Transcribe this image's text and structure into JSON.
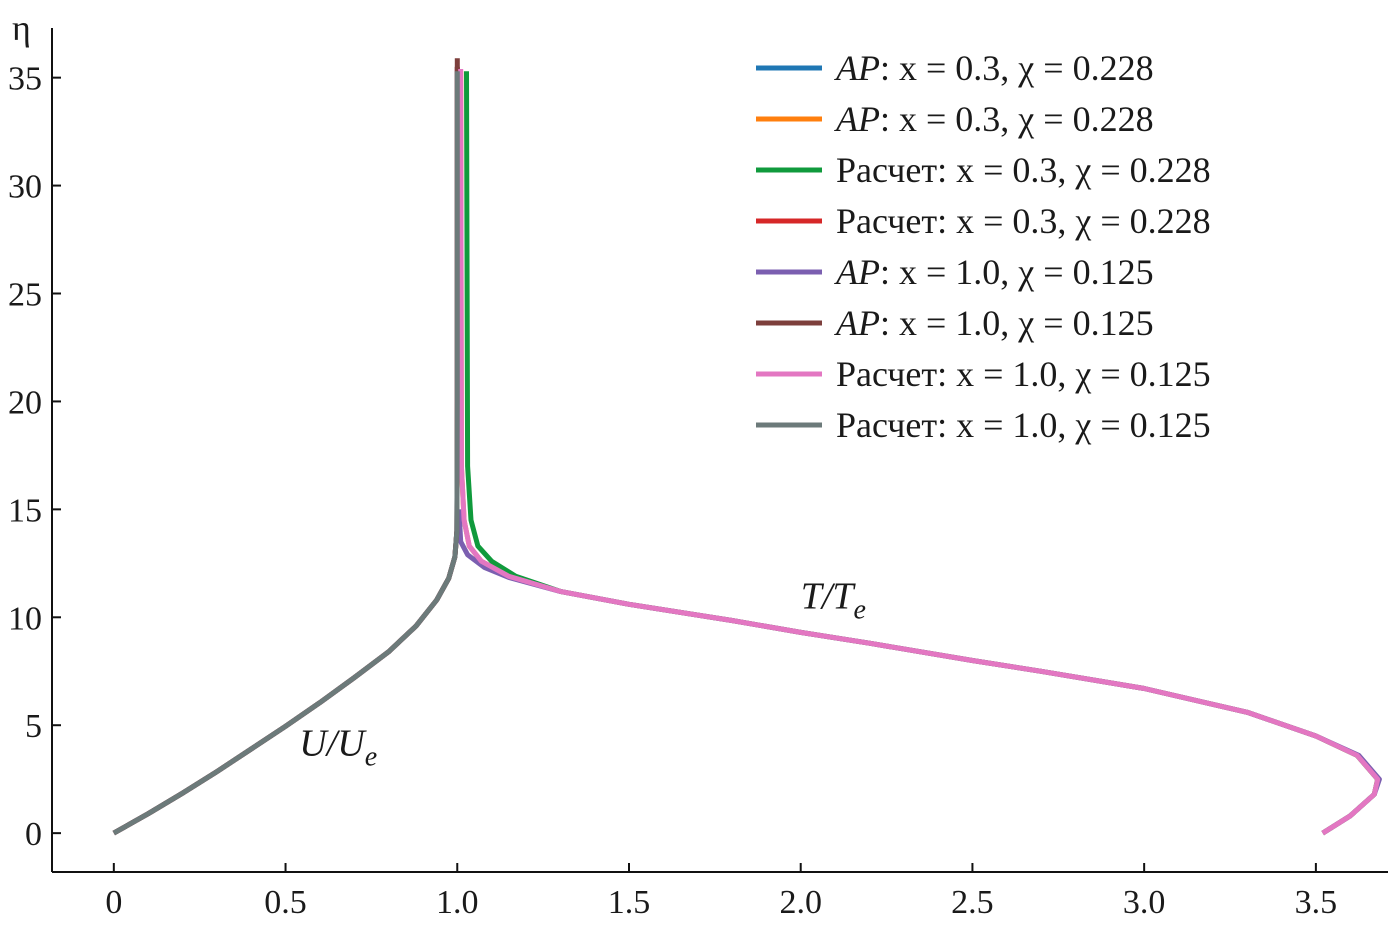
{
  "chart_data": {
    "type": "line",
    "title": "",
    "xlabel": "",
    "ylabel": "η",
    "xlim": [
      -0.18,
      3.71
    ],
    "ylim": [
      -1.8,
      37.3
    ],
    "xticks": [
      0,
      0.5,
      1.0,
      1.5,
      2.0,
      2.5,
      3.0,
      3.5
    ],
    "xtick_labels": [
      "0",
      "0.5",
      "1.0",
      "1.5",
      "2.0",
      "2.5",
      "3.0",
      "3.5"
    ],
    "yticks": [
      0,
      5,
      10,
      15,
      20,
      25,
      30,
      35
    ],
    "ytick_labels": [
      "0",
      "5",
      "10",
      "15",
      "20",
      "25",
      "30",
      "35"
    ],
    "grid": false,
    "legend_position": "top-right",
    "annotations": [
      {
        "text": "U/U",
        "sub": "e",
        "x": 0.54,
        "y": 3.6
      },
      {
        "text": "T/T",
        "sub": "e",
        "x": 2.0,
        "y": 10.4
      }
    ],
    "series": [
      {
        "name": "AP: x = 0.3, χ = 0.228",
        "color": "#1f77b4",
        "x": [
          0,
          0.1,
          0.2,
          0.3,
          0.4,
          0.5,
          0.6,
          0.7,
          0.8,
          0.88,
          0.94,
          0.975,
          0.993,
          0.999,
          1.0,
          1.0
        ],
        "y": [
          0,
          0.9,
          1.85,
          2.85,
          3.9,
          4.95,
          6.05,
          7.2,
          8.4,
          9.6,
          10.8,
          11.8,
          12.8,
          14,
          20,
          35.5
        ]
      },
      {
        "name": "AP: x = 0.3, χ = 0.228",
        "color": "#ff7f0e",
        "x": [
          3.52,
          3.6,
          3.67,
          3.68,
          3.62,
          3.5,
          3.3,
          3.0,
          2.7,
          2.5,
          2.2,
          2.0,
          1.8,
          1.5,
          1.3,
          1.15,
          1.07,
          1.035,
          1.02,
          1.012,
          1.01
        ],
        "y": [
          0,
          0.8,
          1.8,
          2.5,
          3.6,
          4.5,
          5.6,
          6.7,
          7.5,
          8.0,
          8.8,
          9.3,
          9.85,
          10.6,
          11.2,
          11.9,
          12.6,
          13.3,
          14.5,
          17,
          35.3
        ]
      },
      {
        "name": "Расчет: x = 0.3, χ = 0.228",
        "color": "#109a3c",
        "x": [
          3.52,
          3.6,
          3.67,
          3.68,
          3.62,
          3.5,
          3.3,
          3.0,
          2.7,
          2.5,
          2.2,
          2.0,
          1.8,
          1.5,
          1.3,
          1.17,
          1.1,
          1.06,
          1.04,
          1.03,
          1.027
        ],
        "y": [
          0,
          0.8,
          1.8,
          2.5,
          3.6,
          4.5,
          5.6,
          6.7,
          7.5,
          8.0,
          8.8,
          9.3,
          9.85,
          10.6,
          11.2,
          11.9,
          12.6,
          13.3,
          14.5,
          17,
          35.3
        ]
      },
      {
        "name": "Расчет: x = 0.3, χ = 0.228",
        "color": "#d62728",
        "x": [
          0,
          0.1,
          0.2,
          0.3,
          0.4,
          0.5,
          0.6,
          0.7,
          0.8,
          0.88,
          0.94,
          0.975,
          0.993,
          0.999,
          1.0,
          1.0
        ],
        "y": [
          0,
          0.9,
          1.85,
          2.85,
          3.9,
          4.95,
          6.05,
          7.2,
          8.4,
          9.6,
          10.8,
          11.8,
          12.8,
          14,
          20,
          35.5
        ]
      },
      {
        "name": "AP: x = 1.0, χ = 0.125",
        "color": "#7b5fb0",
        "x": [
          3.52,
          3.6,
          3.67,
          3.685,
          3.625,
          3.5,
          3.3,
          3.0,
          2.7,
          2.5,
          2.2,
          2.0,
          1.8,
          1.5,
          1.3,
          1.15,
          1.08,
          1.03,
          1.01,
          1.005
        ],
        "y": [
          0,
          0.8,
          1.8,
          2.5,
          3.6,
          4.5,
          5.6,
          6.7,
          7.5,
          8.0,
          8.8,
          9.3,
          9.85,
          10.6,
          11.2,
          11.85,
          12.3,
          12.9,
          13.5,
          15
        ]
      },
      {
        "name": "AP: x = 1.0, χ = 0.125",
        "color": "#7d3f3c",
        "x": [
          0,
          0.1,
          0.2,
          0.3,
          0.4,
          0.5,
          0.6,
          0.7,
          0.8,
          0.88,
          0.94,
          0.975,
          0.993,
          0.999,
          1.0,
          1.0
        ],
        "y": [
          0,
          0.9,
          1.85,
          2.85,
          3.9,
          4.95,
          6.05,
          7.2,
          8.4,
          9.6,
          10.8,
          11.8,
          12.8,
          14,
          20,
          35.9
        ]
      },
      {
        "name": "Расчет: x = 1.0, χ = 0.125",
        "color": "#e377c2",
        "x": [
          3.52,
          3.6,
          3.67,
          3.68,
          3.62,
          3.5,
          3.3,
          3.0,
          2.7,
          2.5,
          2.2,
          2.0,
          1.8,
          1.5,
          1.3,
          1.15,
          1.07,
          1.035,
          1.02,
          1.012,
          1.01
        ],
        "y": [
          0,
          0.8,
          1.8,
          2.5,
          3.6,
          4.5,
          5.6,
          6.7,
          7.5,
          8.0,
          8.8,
          9.3,
          9.85,
          10.6,
          11.2,
          11.9,
          12.6,
          13.3,
          14.5,
          17,
          35.4
        ]
      },
      {
        "name": "Расчет: x = 1.0, χ = 0.125",
        "color": "#6c7a7a",
        "x": [
          0,
          0.1,
          0.2,
          0.3,
          0.4,
          0.5,
          0.6,
          0.7,
          0.8,
          0.88,
          0.94,
          0.975,
          0.993,
          0.999,
          1.0,
          1.0
        ],
        "y": [
          0,
          0.9,
          1.85,
          2.85,
          3.9,
          4.95,
          6.05,
          7.2,
          8.4,
          9.6,
          10.8,
          11.8,
          12.8,
          14,
          20,
          35.3
        ]
      }
    ]
  }
}
